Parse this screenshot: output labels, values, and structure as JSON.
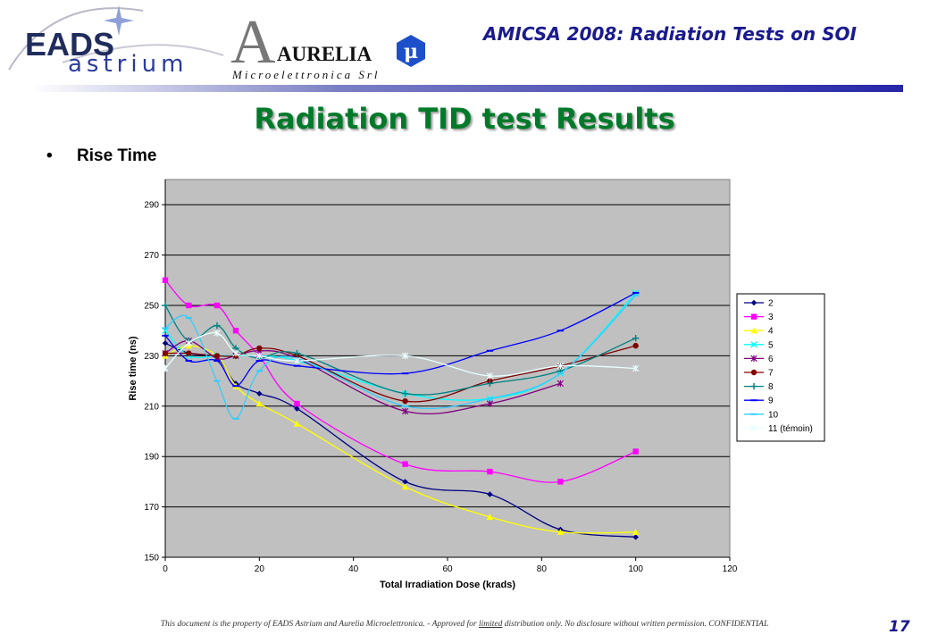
{
  "header": {
    "title": "AMICSA 2008: Radiation Tests on SOI",
    "logo_eads_line1": "EADS",
    "logo_eads_line2": "astrium",
    "logo_aurelia_name": "AURELIA",
    "logo_aurelia_sub": "Microelettronica Srl"
  },
  "slide": {
    "title": "Radiation TID test Results",
    "bullet": "Rise Time"
  },
  "footer": {
    "note_before": "This document is the property of EADS Astrium and Aurelia Microelettronica. - Approved for ",
    "note_underlined": "limited",
    "note_after": " distribution only. No disclosure without written permission. CONFIDENTIAL",
    "page_number": "17"
  },
  "colors": {
    "brand_blue": "#1a1a8e",
    "title_green": "#007a2a",
    "plot_background": "#c0c0c0"
  },
  "chart_data": {
    "type": "line",
    "title": "",
    "xlabel": "Total Irradiation Dose (krads)",
    "ylabel": "Rise time (ns)",
    "xlim": [
      0,
      120
    ],
    "ylim": [
      150,
      300
    ],
    "x_ticks": [
      0,
      20,
      40,
      60,
      80,
      100,
      120
    ],
    "y_ticks": [
      150,
      170,
      190,
      210,
      230,
      250,
      270,
      290
    ],
    "grid": "horizontal",
    "legend_position": "right",
    "series": [
      {
        "name": "2",
        "color": "#000080",
        "marker": "diamond",
        "points": [
          [
            0,
            235
          ],
          [
            5,
            231
          ],
          [
            11,
            229
          ],
          [
            15,
            219
          ],
          [
            20,
            215
          ],
          [
            28,
            209
          ],
          [
            51,
            180
          ],
          [
            69,
            175
          ],
          [
            84,
            161
          ],
          [
            100,
            158
          ]
        ]
      },
      {
        "name": "3",
        "color": "#ff00ff",
        "marker": "square",
        "points": [
          [
            0,
            260
          ],
          [
            5,
            250
          ],
          [
            11,
            250
          ],
          [
            15,
            240
          ],
          [
            20,
            230
          ],
          [
            28,
            211
          ],
          [
            51,
            187
          ],
          [
            69,
            184
          ],
          [
            84,
            180
          ],
          [
            100,
            192
          ]
        ]
      },
      {
        "name": "4",
        "color": "#ffff00",
        "marker": "triangle",
        "points": [
          [
            0,
            230
          ],
          [
            5,
            234
          ],
          [
            11,
            230
          ],
          [
            15,
            218
          ],
          [
            20,
            211
          ],
          [
            28,
            203
          ],
          [
            51,
            178
          ],
          [
            69,
            166
          ],
          [
            84,
            160
          ],
          [
            100,
            160
          ]
        ]
      },
      {
        "name": "5",
        "color": "#00ffff",
        "marker": "x",
        "points": [
          [
            0,
            240
          ],
          [
            5,
            230
          ],
          [
            11,
            230
          ],
          [
            15,
            230
          ],
          [
            20,
            230
          ],
          [
            28,
            228
          ],
          [
            51,
            215
          ],
          [
            69,
            213
          ],
          [
            84,
            223
          ],
          [
            100,
            255
          ]
        ]
      },
      {
        "name": "6",
        "color": "#800080",
        "marker": "star",
        "points": [
          [
            0,
            231
          ],
          [
            5,
            236
          ],
          [
            11,
            229
          ],
          [
            15,
            230
          ],
          [
            20,
            232
          ],
          [
            28,
            229
          ],
          [
            51,
            208
          ],
          [
            69,
            211
          ],
          [
            84,
            219
          ]
        ]
      },
      {
        "name": "7",
        "color": "#800000",
        "marker": "circle",
        "points": [
          [
            0,
            231
          ],
          [
            5,
            231
          ],
          [
            11,
            230
          ],
          [
            15,
            230
          ],
          [
            20,
            233
          ],
          [
            28,
            230
          ],
          [
            51,
            212
          ],
          [
            69,
            220
          ],
          [
            84,
            226
          ],
          [
            100,
            234
          ]
        ]
      },
      {
        "name": "8",
        "color": "#008080",
        "marker": "plus",
        "points": [
          [
            0,
            250
          ],
          [
            5,
            236
          ],
          [
            11,
            242
          ],
          [
            15,
            233
          ],
          [
            20,
            229
          ],
          [
            28,
            231
          ],
          [
            51,
            215
          ],
          [
            69,
            219
          ],
          [
            84,
            224
          ],
          [
            100,
            237
          ]
        ]
      },
      {
        "name": "9",
        "color": "#0000ff",
        "marker": "dash",
        "points": [
          [
            0,
            238
          ],
          [
            5,
            228
          ],
          [
            11,
            228
          ],
          [
            15,
            218
          ],
          [
            20,
            228
          ],
          [
            28,
            226
          ],
          [
            51,
            223
          ],
          [
            69,
            232
          ],
          [
            84,
            240
          ],
          [
            100,
            255
          ]
        ]
      },
      {
        "name": "10",
        "color": "#33ccff",
        "marker": "dash",
        "points": [
          [
            0,
            241
          ],
          [
            5,
            245
          ],
          [
            11,
            220
          ],
          [
            15,
            205
          ],
          [
            20,
            224
          ],
          [
            28,
            229
          ],
          [
            51,
            210
          ],
          [
            69,
            213
          ],
          [
            84,
            223
          ],
          [
            100,
            254
          ]
        ]
      },
      {
        "name": "11 (témoin)",
        "color": "#e8ffff",
        "marker": "star",
        "points": [
          [
            0,
            225
          ],
          [
            5,
            235
          ],
          [
            11,
            239
          ],
          [
            15,
            231
          ],
          [
            20,
            230
          ],
          [
            28,
            228
          ],
          [
            51,
            230
          ],
          [
            69,
            222
          ],
          [
            84,
            226
          ],
          [
            100,
            225
          ]
        ]
      }
    ]
  }
}
